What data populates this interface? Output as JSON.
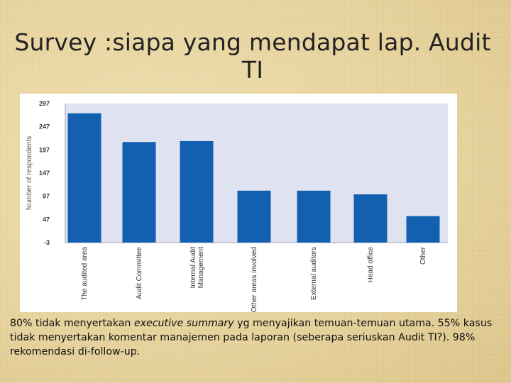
{
  "slide": {
    "title": "Survey :siapa yang mendapat lap. Audit TI"
  },
  "caption": {
    "part1": "80% tidak menyertakan ",
    "emphasis": "executive summary",
    "part2": " yg menyajikan temuan-temuan utama. 55% kasus tidak menyertakan komentar manajemen pada laporan (seberapa seriuskan Audit TI?). 98% rekomendasi di-follow-up."
  },
  "colors": {
    "bar": "#1460b0",
    "plot_bg": "#dfe3f1",
    "axis_text": "#333333"
  },
  "chart_data": {
    "type": "bar",
    "title": "",
    "xlabel": "",
    "ylabel": "Number of respondents",
    "categories": [
      "The audited area",
      "Audit Committee",
      "Internal Audit Management",
      "Other areas involved",
      "External auditors",
      "Head office",
      "Other"
    ],
    "values": [
      276,
      214,
      216,
      109,
      109,
      101,
      54
    ],
    "ylim": [
      -3,
      297
    ],
    "yticks": [
      "297",
      "247",
      "197",
      "147",
      "97",
      "47",
      "-3"
    ],
    "ytick_values": [
      297,
      247,
      197,
      147,
      97,
      47,
      -3
    ],
    "grid": false,
    "legend": "none"
  }
}
